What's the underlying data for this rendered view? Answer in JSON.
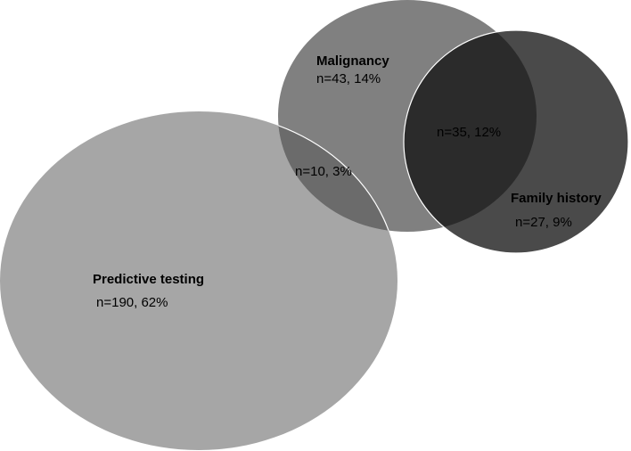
{
  "sets": [
    {
      "label": "Predictive testing",
      "count": "n=190, 62%"
    },
    {
      "label": "Malignancy",
      "count": "n=43, 14%"
    },
    {
      "label": "Family history",
      "count": "n=27, 9%"
    }
  ],
  "overlaps": [
    {
      "count": "n=10, 3%"
    },
    {
      "count": "n=35, 12%"
    }
  ]
}
